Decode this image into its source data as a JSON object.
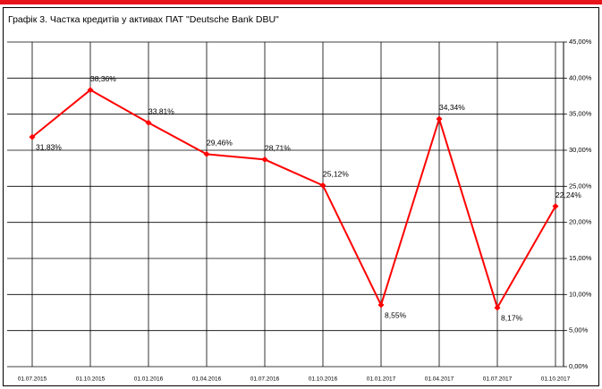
{
  "chart_data": {
    "type": "line",
    "title": "Графік 3. Частка кредитів у активах ПАТ \"Deutsche Bank DBU\"",
    "categories": [
      "01.07.2015",
      "01.10.2015",
      "01.01.2016",
      "01.04.2016",
      "01.07.2016",
      "01.10.2016",
      "01.01.2017",
      "01.04.2017",
      "01.07.2017",
      "01.10.2017"
    ],
    "series": [
      {
        "color": "#ff0000",
        "values": [
          31.83,
          38.36,
          33.81,
          29.46,
          28.71,
          25.12,
          8.55,
          34.34,
          8.17,
          22.24
        ],
        "value_labels": [
          "31,83%",
          "38,36%",
          "33,81%",
          "29,46%",
          "28,71%",
          "25,12%",
          "8,55%",
          "34,34%",
          "8,17%",
          "22,24%"
        ]
      }
    ],
    "ylim": [
      0,
      45
    ],
    "yticks": [
      {
        "value": 0,
        "label": "0,00%"
      },
      {
        "value": 5,
        "label": "5,00%"
      },
      {
        "value": 10,
        "label": "10,00%"
      },
      {
        "value": 15,
        "label": "15,00%"
      },
      {
        "value": 20,
        "label": "20,00%"
      },
      {
        "value": 25,
        "label": "25,00%"
      },
      {
        "value": 30,
        "label": "30,00%"
      },
      {
        "value": 35,
        "label": "35,00%"
      },
      {
        "value": 40,
        "label": "40,00%"
      },
      {
        "value": 45,
        "label": "45,00%"
      }
    ],
    "grid": true
  }
}
